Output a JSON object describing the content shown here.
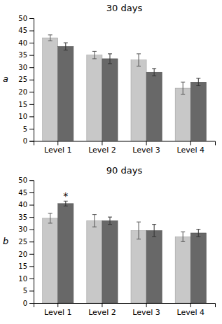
{
  "chart_data": [
    {
      "type": "bar",
      "title": "30 days",
      "ylabel": "a",
      "categories": [
        "Level 1",
        "Level 2",
        "Level 3",
        "Level 4"
      ],
      "series": [
        {
          "color": "#c8c8c8",
          "values": [
            42,
            35,
            33,
            21.5
          ],
          "errors": [
            1.2,
            1.5,
            2.5,
            2.5
          ]
        },
        {
          "color": "#686868",
          "values": [
            38.5,
            33.5,
            28,
            24
          ],
          "errors": [
            1.5,
            2.0,
            1.5,
            1.5
          ]
        }
      ],
      "ylim": [
        0,
        50
      ],
      "yticks": [
        0,
        5,
        10,
        15,
        20,
        25,
        30,
        35,
        40,
        45,
        50
      ],
      "grid": false
    },
    {
      "type": "bar",
      "title": "90 days",
      "ylabel": "b",
      "categories": [
        "Level 1",
        "Level 2",
        "Level 3",
        "Level 4"
      ],
      "series": [
        {
          "color": "#c8c8c8",
          "values": [
            34.5,
            33.5,
            29.5,
            27
          ],
          "errors": [
            2.0,
            2.5,
            3.5,
            2.0
          ]
        },
        {
          "color": "#686868",
          "values": [
            40.5,
            33.5,
            29.5,
            28.5
          ],
          "errors": [
            1.0,
            1.5,
            2.5,
            1.5
          ]
        }
      ],
      "annotations": [
        {
          "text": "*",
          "category": "Level 1",
          "series": 1
        }
      ],
      "ylim": [
        0,
        50
      ],
      "yticks": [
        0,
        5,
        10,
        15,
        20,
        25,
        30,
        35,
        40,
        45,
        50
      ],
      "grid": false
    }
  ]
}
